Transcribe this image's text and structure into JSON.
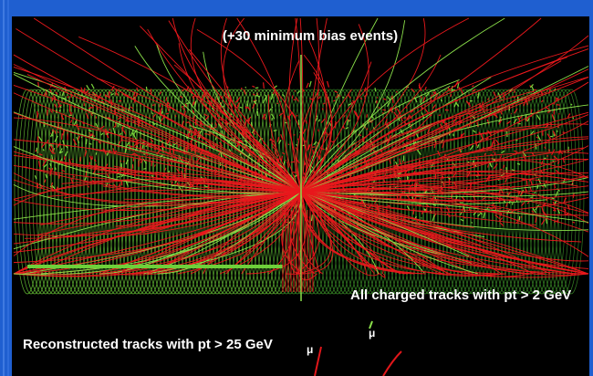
{
  "labels": {
    "top": "(+30 minimum bias events)",
    "right": "All charged tracks with pt > 2 GeV",
    "bottom": "Reconstructed tracks with pt > 25 GeV"
  },
  "muon_labels": [
    "μ",
    "μ"
  ]
}
